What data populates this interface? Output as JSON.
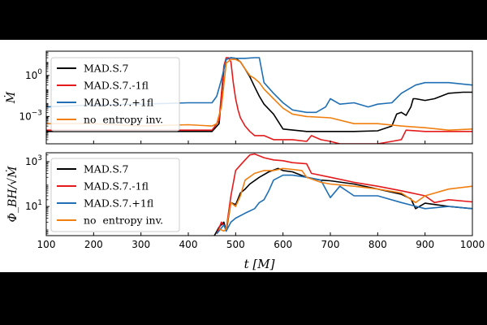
{
  "colors": {
    "MAD.S.7": "#000000",
    "MAD.S.7.-1fl": "#e41a1c",
    "MAD.S.7.+1fl": "#1f6fb4",
    "no  entropy inv.": "#f07f10"
  },
  "chart_data": [
    {
      "type": "line",
      "panel": "top",
      "ylabel": "Ṁ",
      "yscale": "log",
      "ylim": [
        1e-05,
        60
      ],
      "yticks": [
        {
          "v": 1,
          "label": "10^0"
        },
        {
          "v": 0.001,
          "label": "10^-3"
        }
      ],
      "xlim": [
        100,
        1000
      ],
      "legend": "upper-left",
      "series": [
        {
          "name": "MAD.S.7",
          "x": [
            100,
            450,
            465,
            475,
            480,
            490,
            500,
            510,
            520,
            530,
            540,
            550,
            560,
            580,
            600,
            650,
            700,
            750,
            800,
            830,
            840,
            850,
            860,
            870,
            875,
            880,
            900,
            920,
            950,
            980,
            1000
          ],
          "y": [
            8e-05,
            8e-05,
            0.0003,
            3,
            15,
            20,
            18,
            10,
            3,
            0.8,
            0.15,
            0.03,
            0.008,
            0.0015,
            0.00012,
            8e-05,
            8e-05,
            8e-05,
            9e-05,
            0.0002,
            0.0015,
            0.002,
            0.0012,
            0.005,
            0.02,
            0.02,
            0.015,
            0.02,
            0.05,
            0.06,
            0.06
          ]
        },
        {
          "name": "MAD.S.7.-1fl",
          "x": [
            100,
            450,
            465,
            475,
            480,
            485,
            490,
            495,
            500,
            505,
            510,
            520,
            530,
            540,
            560,
            580,
            600,
            620,
            650,
            660,
            680,
            700,
            720,
            750,
            800,
            830,
            850,
            860,
            900,
            950,
            1000
          ],
          "y": [
            0.0001,
            0.0001,
            0.0005,
            5,
            20,
            20,
            10,
            0.3,
            0.02,
            0.003,
            0.0008,
            0.0002,
            8e-05,
            4e-05,
            4e-05,
            2e-05,
            2e-05,
            2e-05,
            1.5e-05,
            4e-05,
            2e-05,
            1.5e-05,
            1e-05,
            1e-05,
            1e-05,
            1.5e-05,
            2e-05,
            0.0001,
            8e-05,
            8e-05,
            8e-05
          ]
        },
        {
          "name": "MAD.S.7.+1fl",
          "x": [
            100,
            200,
            300,
            400,
            450,
            460,
            470,
            480,
            490,
            500,
            520,
            540,
            550,
            560,
            580,
            600,
            620,
            650,
            670,
            690,
            700,
            720,
            750,
            780,
            800,
            830,
            850,
            880,
            900,
            950,
            1000
          ],
          "y": [
            0.005,
            0.007,
            0.008,
            0.01,
            0.01,
            0.03,
            0.5,
            15,
            20,
            18,
            18,
            20,
            20,
            0.3,
            0.05,
            0.01,
            0.003,
            0.002,
            0.002,
            0.005,
            0.02,
            0.008,
            0.01,
            0.005,
            0.008,
            0.01,
            0.05,
            0.2,
            0.3,
            0.3,
            0.2
          ]
        },
        {
          "name": "no  entropy inv.",
          "x": [
            100,
            200,
            300,
            400,
            450,
            460,
            470,
            480,
            490,
            500,
            510,
            520,
            530,
            540,
            550,
            560,
            580,
            600,
            620,
            650,
            700,
            750,
            800,
            850,
            900,
            950,
            1000
          ],
          "y": [
            0.0003,
            0.0003,
            0.0002,
            0.00025,
            0.0002,
            0.0003,
            0.005,
            8,
            15,
            15,
            10,
            3,
            1,
            0.6,
            0.3,
            0.1,
            0.02,
            0.004,
            0.0015,
            0.001,
            0.0008,
            0.0003,
            0.0003,
            0.0002,
            0.00015,
            0.0001,
            0.00012
          ]
        }
      ]
    },
    {
      "type": "line",
      "panel": "bottom",
      "ylabel": "Φ_BH/√Ṁ",
      "yscale": "log",
      "ylim": [
        0.5,
        2500
      ],
      "yticks": [
        {
          "v": 1000,
          "label": "10^3"
        },
        {
          "v": 10,
          "label": "10^1"
        }
      ],
      "xlim": [
        100,
        1000
      ],
      "xticks": [
        100,
        200,
        300,
        400,
        500,
        600,
        700,
        800,
        900,
        1000
      ],
      "xlabel": "t [M]",
      "legend": "upper-left",
      "series": [
        {
          "name": "MAD.S.7",
          "x": [
            455,
            465,
            475,
            480,
            490,
            500,
            510,
            520,
            530,
            550,
            570,
            590,
            600,
            620,
            650,
            680,
            700,
            750,
            800,
            850,
            870,
            880,
            900,
            950,
            1000
          ],
          "y": [
            0.5,
            1.2,
            2,
            0.8,
            15,
            12,
            40,
            60,
            100,
            200,
            350,
            500,
            400,
            350,
            200,
            150,
            140,
            100,
            60,
            35,
            22,
            8,
            14,
            10,
            8
          ]
        },
        {
          "name": "MAD.S.7.-1fl",
          "x": [
            460,
            470,
            480,
            490,
            500,
            510,
            520,
            530,
            540,
            560,
            580,
            600,
            620,
            650,
            660,
            700,
            750,
            800,
            850,
            900,
            920,
            950,
            1000
          ],
          "y": [
            0.6,
            2,
            1,
            30,
            400,
            700,
            1200,
            2000,
            2200,
            1500,
            1200,
            1100,
            900,
            800,
            300,
            200,
            120,
            80,
            50,
            30,
            15,
            20,
            16
          ]
        },
        {
          "name": "MAD.S.7.+1fl",
          "x": [
            460,
            475,
            480,
            490,
            500,
            520,
            540,
            550,
            560,
            570,
            580,
            600,
            620,
            650,
            680,
            700,
            720,
            750,
            800,
            850,
            900,
            950,
            1000
          ],
          "y": [
            0.6,
            1.5,
            0.8,
            2,
            3,
            5,
            8,
            15,
            20,
            50,
            150,
            250,
            250,
            200,
            150,
            25,
            80,
            30,
            30,
            15,
            8,
            10,
            8
          ]
        },
        {
          "name": "no  entropy inv.",
          "x": [
            465,
            475,
            480,
            490,
            500,
            510,
            520,
            540,
            560,
            580,
            600,
            620,
            640,
            650,
            680,
            700,
            750,
            800,
            850,
            880,
            900,
            950,
            1000
          ],
          "y": [
            1,
            0.8,
            1,
            15,
            10,
            30,
            150,
            300,
            400,
            400,
            500,
            450,
            400,
            200,
            120,
            100,
            80,
            60,
            40,
            15,
            30,
            60,
            80
          ]
        }
      ]
    }
  ],
  "legend_labels": [
    "MAD.S.7",
    "MAD.S.7.-1fl",
    "MAD.S.7.+1fl",
    "no  entropy inv."
  ]
}
